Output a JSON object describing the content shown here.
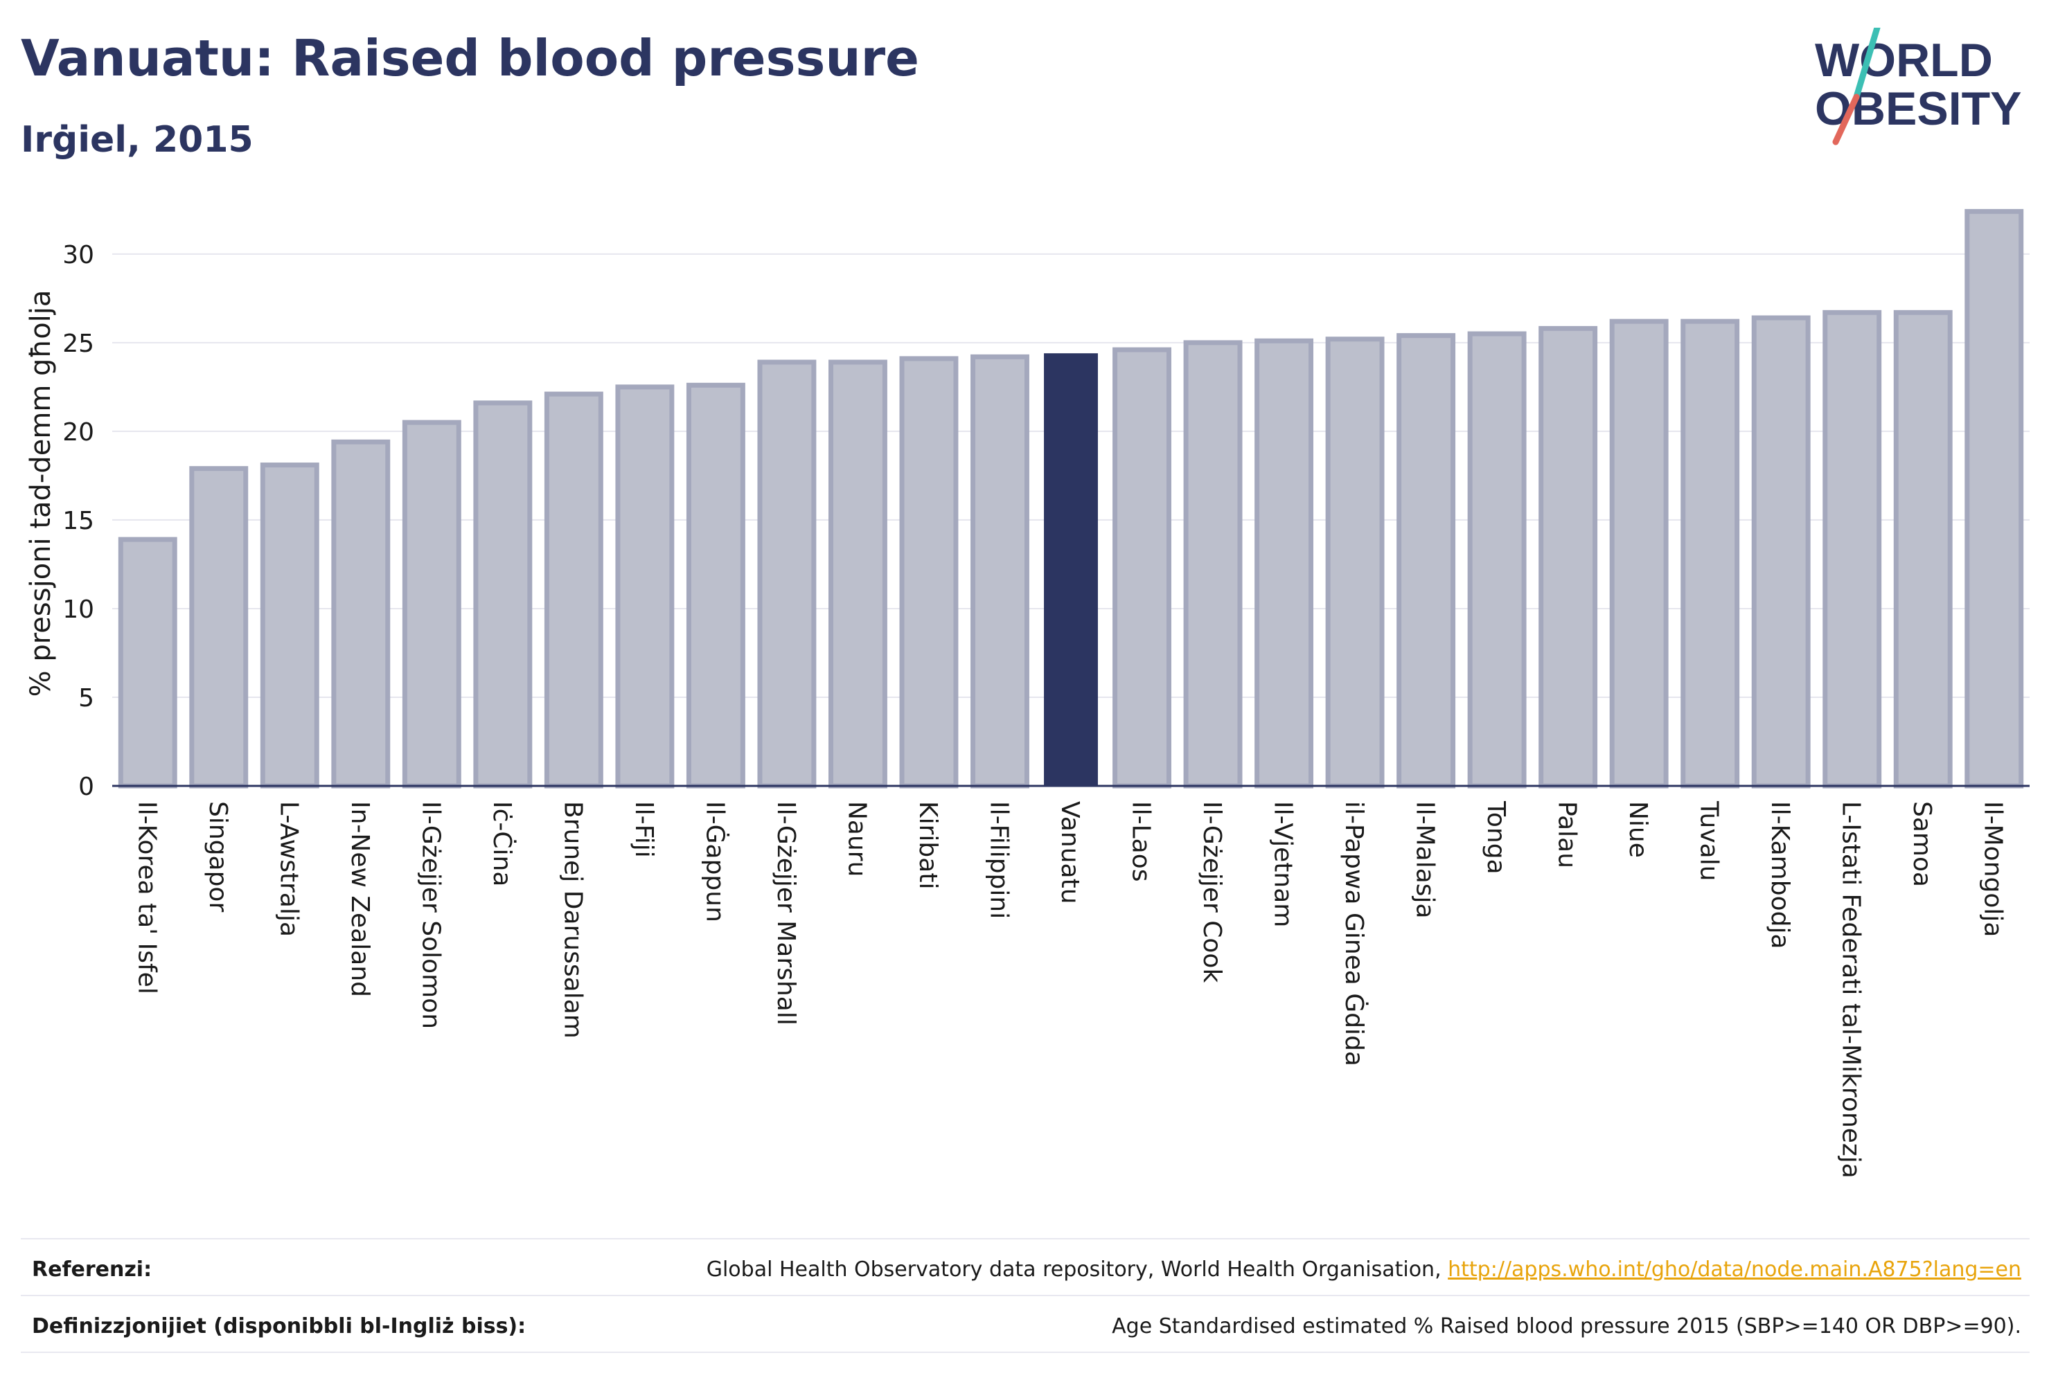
{
  "header": {
    "title": "Vanuatu: Raised blood pressure",
    "subtitle": "Irġiel, 2015"
  },
  "logo": {
    "line1": "WORLD",
    "line2": "OBESITY",
    "colors": {
      "text": "#2c3561",
      "slash_teal": "#3cbfb4",
      "slash_coral": "#e2675b"
    }
  },
  "chart_data": {
    "type": "bar",
    "ylabel": "% pressjoni tad-demm għolja",
    "ylim": [
      0,
      33
    ],
    "yticks": [
      0,
      5,
      10,
      15,
      20,
      25,
      30
    ],
    "grid": true,
    "highlight": "Vanuatu",
    "colors": {
      "bar": "#bcbfcc",
      "bar_edge": "#a4a8bd",
      "highlight": "#2c3561",
      "grid": "#e6e6ee",
      "axis": "#2c3561"
    },
    "categories": [
      "Il-Korea ta' Isfel",
      "Singapor",
      "L-Awstralja",
      "In-New Zealand",
      "Il-Gżejjer Solomon",
      "Iċ-Ċina",
      "Brunej Darussalam",
      "Il-Fiji",
      "Il-Ġappun",
      "Il-Gżejjer Marshall",
      "Nauru",
      "Kiribati",
      "Il-Filippini",
      "Vanuatu",
      "Il-Laos",
      "Il-Gżejjer Cook",
      "Il-Vjetnam",
      "il-Papwa Ginea Ġdida",
      "Il-Malasja",
      "Tonga",
      "Palau",
      "Niue",
      "Tuvalu",
      "Il-Kambodja",
      "L-Istati Federati tal-Mikronezja",
      "Samoa",
      "Il-Mongolja"
    ],
    "values": [
      13.9,
      17.9,
      18.1,
      19.4,
      20.5,
      21.6,
      22.1,
      22.5,
      22.6,
      23.9,
      23.9,
      24.1,
      24.2,
      24.4,
      24.6,
      25.0,
      25.1,
      25.2,
      25.4,
      25.5,
      25.8,
      26.2,
      26.2,
      26.4,
      26.7,
      26.7,
      32.4
    ]
  },
  "footer": {
    "references_label": "Referenzi:",
    "references_text": "Global Health Observatory data repository, World Health Organisation, ",
    "references_link": "http://apps.who.int/gho/data/node.main.A875?lang=en",
    "definitions_label": "Definizzjonijiet (disponibbli bl-Ingliż biss):",
    "definitions_text": "Age Standardised estimated % Raised blood pressure 2015 (SBP>=140 OR DBP>=90)."
  }
}
